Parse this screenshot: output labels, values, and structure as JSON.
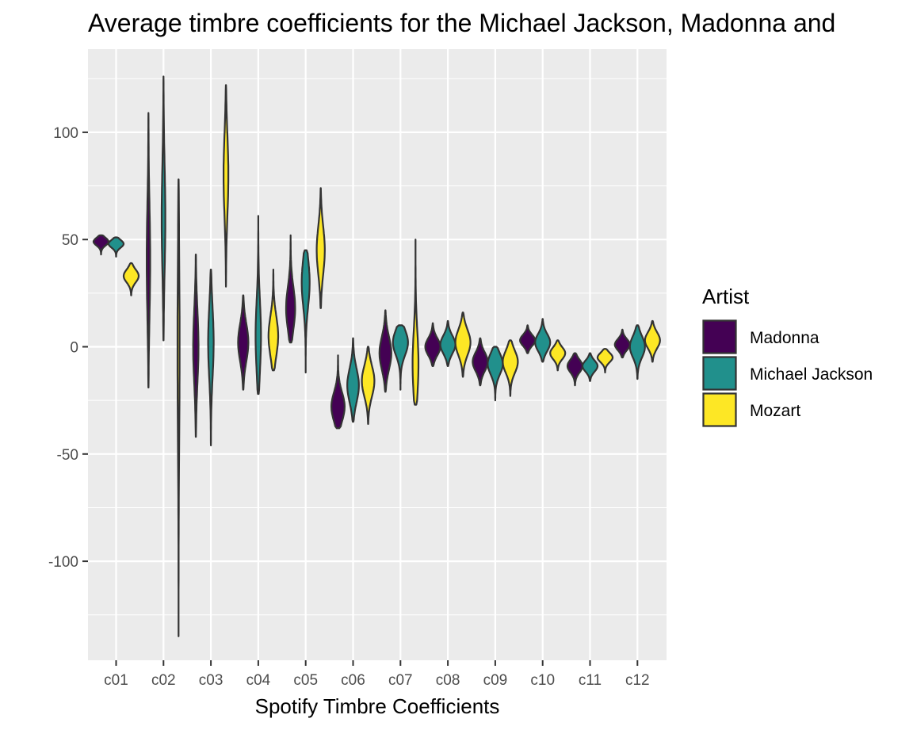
{
  "chart_data": {
    "type": "violin",
    "title": "Average timbre coefficients for the Michael Jackson, Madonna and",
    "xlabel": "Spotify Timbre Coefficients",
    "ylabel": "",
    "ylim": [
      -145,
      128
    ],
    "yticks": [
      100,
      50,
      0,
      -50,
      -100
    ],
    "ytick_labels": [
      "100",
      "50",
      "0",
      "-50",
      "-100"
    ],
    "categories": [
      "c01",
      "c02",
      "c03",
      "c04",
      "c05",
      "c06",
      "c07",
      "c08",
      "c09",
      "c10",
      "c11",
      "c12"
    ],
    "grid": true,
    "legend": {
      "title": "Artist",
      "position": "right"
    },
    "series": [
      {
        "name": "Madonna",
        "color": "#440154",
        "violins": [
          {
            "min": 43,
            "max": 52,
            "center": 49
          },
          {
            "min": -19,
            "max": 109,
            "center": 40
          },
          {
            "min": -42,
            "max": 43,
            "center": 0
          },
          {
            "min": -20,
            "max": 24,
            "center": 2
          },
          {
            "min": 2,
            "max": 52,
            "center": 18
          },
          {
            "min": -38,
            "max": -4,
            "center": -28
          },
          {
            "min": -21,
            "max": 17,
            "center": -3
          },
          {
            "min": -9,
            "max": 11,
            "center": 0
          },
          {
            "min": -18,
            "max": 4,
            "center": -7
          },
          {
            "min": -3,
            "max": 10,
            "center": 3
          },
          {
            "min": -18,
            "max": -3,
            "center": -9
          },
          {
            "min": -5,
            "max": 8,
            "center": 1
          }
        ]
      },
      {
        "name": "Michael Jackson",
        "color": "#21908C",
        "violins": [
          {
            "min": 42,
            "max": 51,
            "center": 48
          },
          {
            "min": 3,
            "max": 126,
            "center": 60
          },
          {
            "min": -46,
            "max": 36,
            "center": 2
          },
          {
            "min": -22,
            "max": 61,
            "center": 5
          },
          {
            "min": -12,
            "max": 45,
            "center": 30
          },
          {
            "min": -35,
            "max": 4,
            "center": -18
          },
          {
            "min": -20,
            "max": 10,
            "center": 2
          },
          {
            "min": -9,
            "max": 12,
            "center": 1
          },
          {
            "min": -25,
            "max": 0,
            "center": -8
          },
          {
            "min": -7,
            "max": 13,
            "center": 2
          },
          {
            "min": -16,
            "max": -3,
            "center": -9
          },
          {
            "min": -15,
            "max": 10,
            "center": 0
          }
        ]
      },
      {
        "name": "Mozart",
        "color": "#FDE725",
        "violins": [
          {
            "min": 24,
            "max": 39,
            "center": 33
          },
          {
            "min": -135,
            "max": 78,
            "center": 0
          },
          {
            "min": 28,
            "max": 122,
            "center": 80
          },
          {
            "min": -11,
            "max": 36,
            "center": 5
          },
          {
            "min": 18,
            "max": 74,
            "center": 45
          },
          {
            "min": -36,
            "max": 0,
            "center": -16
          },
          {
            "min": -27,
            "max": 50,
            "center": -8
          },
          {
            "min": -14,
            "max": 16,
            "center": 2
          },
          {
            "min": -23,
            "max": 3,
            "center": -7
          },
          {
            "min": -11,
            "max": 3,
            "center": -3
          },
          {
            "min": -12,
            "max": -1,
            "center": -5
          },
          {
            "min": -7,
            "max": 12,
            "center": 3
          }
        ]
      }
    ]
  }
}
